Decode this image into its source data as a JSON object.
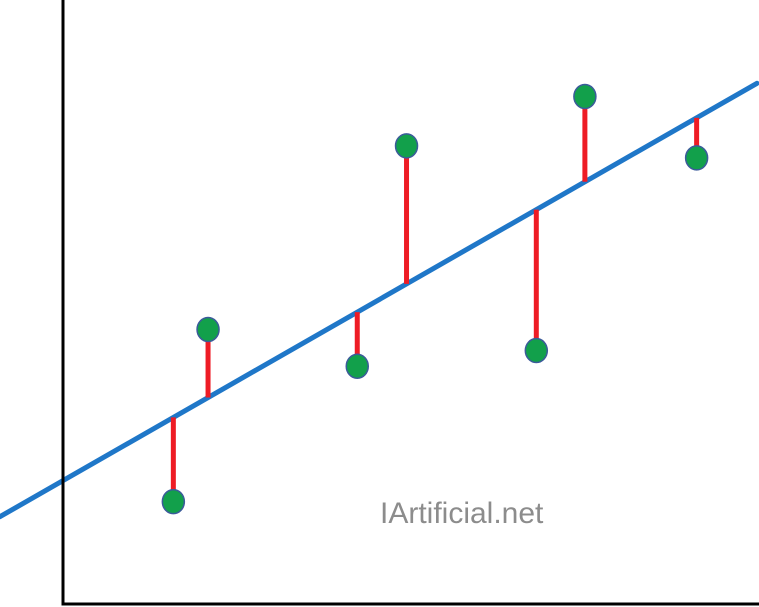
{
  "chart_data": {
    "type": "scatter",
    "title": "",
    "xlabel": "",
    "ylabel": "",
    "axes_ticks": false,
    "grid": false,
    "xlim": [
      0,
      100
    ],
    "ylim": [
      0,
      100
    ],
    "series": [
      {
        "values": [
          {
            "x": 15.9,
            "y": 17.0
          },
          {
            "x": 20.9,
            "y": 45.6
          },
          {
            "x": 42.4,
            "y": 39.5
          },
          {
            "x": 49.5,
            "y": 76.1
          },
          {
            "x": 68.2,
            "y": 42.1
          },
          {
            "x": 75.2,
            "y": 84.3
          },
          {
            "x": 91.3,
            "y": 74.1
          }
        ]
      }
    ],
    "regression_line": {
      "intercept": 20.5,
      "slope": 0.66
    },
    "show_residuals": true,
    "colors": {
      "axis": "#000000",
      "line": "#1f77c8",
      "residual": "#ee1c25",
      "point_fill": "#12a04b",
      "point_stroke": "#3b5b9a"
    }
  },
  "watermark": {
    "text": "IArtificial.net"
  }
}
